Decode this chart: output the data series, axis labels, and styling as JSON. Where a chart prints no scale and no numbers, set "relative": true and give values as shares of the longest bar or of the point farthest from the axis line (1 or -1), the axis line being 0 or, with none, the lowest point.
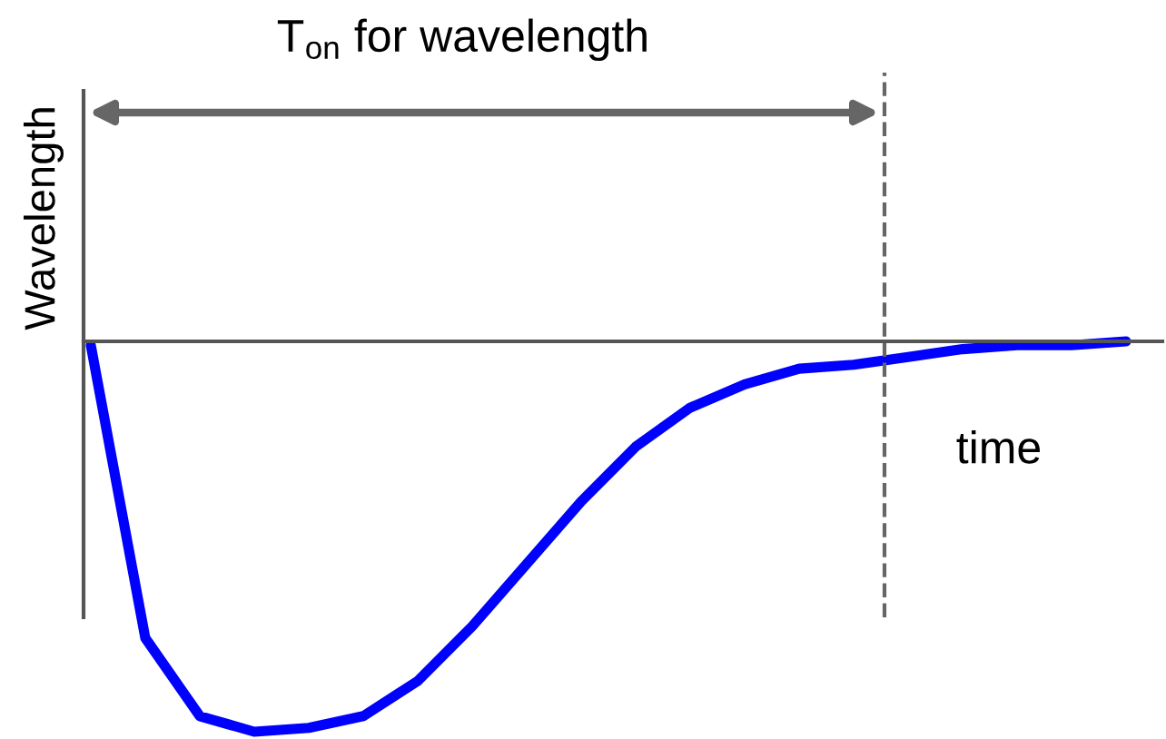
{
  "chart_data": {
    "type": "line",
    "relative": true,
    "xlabel": "time",
    "ylabel": "Wavelength",
    "annotations": [
      "T$_{on}$ for wavelength"
    ],
    "categories": [
      null,
      null,
      null,
      null,
      null,
      null,
      null,
      null,
      null,
      null,
      null,
      null,
      null,
      null,
      null,
      null,
      null,
      null,
      null,
      null
    ],
    "series": [
      {
        "color": "#0000ff",
        "values": [
          -0.01,
          -0.76,
          -0.96,
          -1.0,
          -0.99,
          -0.96,
          -0.87,
          -0.73,
          -0.57,
          -0.41,
          -0.27,
          -0.17,
          -0.11,
          -0.07,
          -0.06,
          -0.04,
          -0.02,
          -0.01,
          -0.01,
          0.0
        ]
      }
    ],
    "grid": false,
    "legend": false,
    "marker": "none",
    "line_style": "solid"
  }
}
